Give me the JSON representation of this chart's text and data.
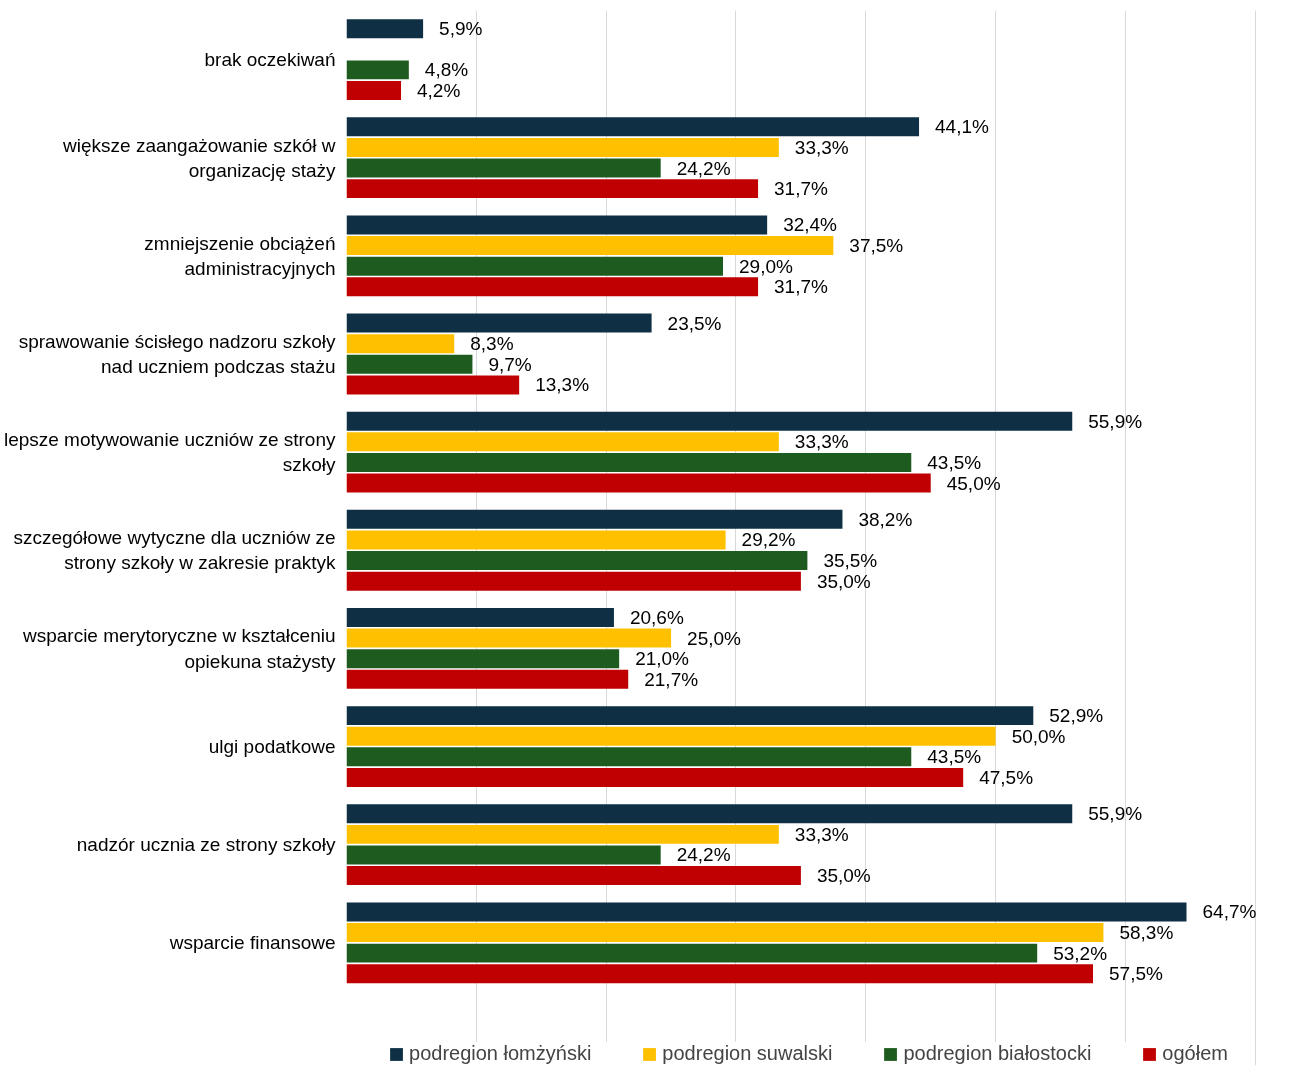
{
  "chart_data": {
    "type": "bar",
    "orientation": "horizontal",
    "categories": [
      "brak oczekiwań",
      "większe zaangażowanie szkół w organizację staży",
      "zmniejszenie obciążeń administracyjnych",
      "sprawowanie ścisłego nadzoru szkoły nad uczniem podczas stażu",
      "lepsze motywowanie uczniów ze strony szkoły",
      "szczegółowe wytyczne dla uczniów ze strony szkoły w zakresie praktyk",
      "wsparcie merytoryczne w kształceniu opiekuna stażysty",
      "ulgi podatkowe",
      "nadzór ucznia ze strony szkoły",
      "wsparcie finansowe"
    ],
    "series": [
      {
        "name": "podregion łomżyński",
        "color": "#0e2f44",
        "values": [
          5.9,
          44.1,
          32.4,
          23.5,
          55.9,
          38.2,
          20.6,
          52.9,
          55.9,
          64.7
        ],
        "value_labels": [
          "5,9%",
          "44,1%",
          "32,4%",
          "23,5%",
          "55,9%",
          "38,2%",
          "20,6%",
          "52,9%",
          "55,9%",
          "64,7%"
        ]
      },
      {
        "name": "podregion suwalski",
        "color": "#ffc000",
        "values": [
          null,
          33.3,
          37.5,
          8.3,
          33.3,
          29.2,
          25.0,
          50.0,
          33.3,
          58.3
        ],
        "value_labels": [
          null,
          "33,3%",
          "37,5%",
          "8,3%",
          "33,3%",
          "29,2%",
          "25,0%",
          "50,0%",
          "33,3%",
          "58,3%"
        ]
      },
      {
        "name": "podregion białostocki",
        "color": "#1e5b1e",
        "values": [
          4.8,
          24.2,
          29.0,
          9.7,
          43.5,
          35.5,
          21.0,
          43.5,
          24.2,
          53.2
        ],
        "value_labels": [
          "4,8%",
          "24,2%",
          "29,0%",
          "9,7%",
          "43,5%",
          "35,5%",
          "21,0%",
          "43,5%",
          "24,2%",
          "53,2%"
        ]
      },
      {
        "name": "ogółem",
        "color": "#c00000",
        "values": [
          4.2,
          31.7,
          31.7,
          13.3,
          45.0,
          35.0,
          21.7,
          47.5,
          35.0,
          57.5
        ],
        "value_labels": [
          "4,2%",
          "31,7%",
          "31,7%",
          "13,3%",
          "45,0%",
          "35,0%",
          "21,7%",
          "47,5%",
          "35,0%",
          "57,5%"
        ]
      }
    ],
    "tick_labels": "y",
    "grid": "x",
    "legend": "bottom"
  }
}
